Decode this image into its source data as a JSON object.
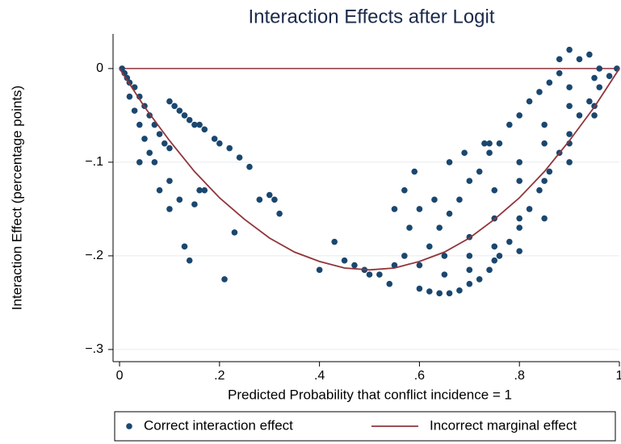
{
  "chart_data": {
    "type": "scatter",
    "title": "Interaction Effects after Logit",
    "x_label": "Predicted Probability that conflict incidence = 1",
    "y_label": "Interaction Effect (percentage points)",
    "xlim": [
      -0.013,
      1.0
    ],
    "ylim": [
      -0.313,
      0.037
    ],
    "xticks": [
      0,
      {
        "value": 0.2,
        "label": ".2"
      },
      {
        "value": 0.4,
        "label": ".4"
      },
      {
        "value": 0.6,
        "label": ".6"
      },
      {
        "value": 0.8,
        "label": ".8"
      },
      1
    ],
    "yticks": [
      0,
      {
        "value": -0.1,
        "label": "−.1"
      },
      {
        "value": -0.2,
        "label": "−.2"
      },
      {
        "value": -0.3,
        "label": "−.3"
      }
    ],
    "grid": true,
    "legend": "bottom",
    "reference_line": {
      "y": 0,
      "color": "#90353b"
    },
    "series": [
      {
        "name": "Correct interaction effect",
        "type": "scatter",
        "color": "#1a476f",
        "x": [
          0.005,
          0.01,
          0.015,
          0.02,
          0.02,
          0.03,
          0.03,
          0.04,
          0.04,
          0.05,
          0.05,
          0.06,
          0.06,
          0.07,
          0.07,
          0.08,
          0.09,
          0.1,
          0.1,
          0.11,
          0.12,
          0.13,
          0.14,
          0.15,
          0.16,
          0.17,
          0.1,
          0.12,
          0.13,
          0.14,
          0.15,
          0.16,
          0.17,
          0.21,
          0.23,
          0.2,
          0.22,
          0.24,
          0.26,
          0.19,
          0.28,
          0.3,
          0.31,
          0.32,
          0.08,
          0.1,
          0.04,
          0.4,
          0.43,
          0.45,
          0.47,
          0.49,
          0.5,
          0.52,
          0.54,
          0.55,
          0.57,
          0.6,
          0.58,
          0.6,
          0.62,
          0.64,
          0.66,
          0.68,
          0.7,
          0.72,
          0.74,
          0.76,
          0.78,
          0.8,
          0.82,
          0.84,
          0.86,
          0.88,
          0.9,
          0.92,
          0.94,
          0.96,
          0.98,
          0.995,
          0.62,
          0.64,
          0.66,
          0.68,
          0.7,
          0.72,
          0.74,
          0.76,
          0.78,
          0.8,
          0.82,
          0.84,
          0.86,
          0.88,
          0.9,
          0.92,
          0.94,
          0.96,
          0.88,
          0.65,
          0.7,
          0.75,
          0.8,
          0.85,
          0.9,
          0.95,
          0.75,
          0.8,
          0.85,
          0.9,
          0.7,
          0.75,
          0.8,
          0.85,
          0.9,
          0.95,
          0.6,
          0.65,
          0.7,
          0.75,
          0.8,
          0.85,
          0.9,
          0.95,
          0.73,
          0.74,
          0.57,
          0.55,
          0.59,
          0.63,
          0.66,
          0.69
        ],
        "values": [
          0.0,
          -0.005,
          -0.01,
          -0.015,
          -0.03,
          -0.02,
          -0.045,
          -0.03,
          -0.06,
          -0.04,
          -0.075,
          -0.05,
          -0.09,
          -0.06,
          -0.1,
          -0.07,
          -0.08,
          -0.035,
          -0.085,
          -0.04,
          -0.045,
          -0.05,
          -0.055,
          -0.06,
          -0.06,
          -0.065,
          -0.15,
          -0.14,
          -0.19,
          -0.205,
          -0.145,
          -0.13,
          -0.13,
          -0.225,
          -0.175,
          -0.08,
          -0.085,
          -0.095,
          -0.105,
          -0.075,
          -0.14,
          -0.135,
          -0.14,
          -0.155,
          -0.13,
          -0.12,
          -0.1,
          -0.215,
          -0.185,
          -0.205,
          -0.21,
          -0.215,
          -0.22,
          -0.22,
          -0.23,
          -0.21,
          -0.2,
          -0.15,
          -0.17,
          -0.235,
          -0.238,
          -0.24,
          -0.24,
          -0.237,
          -0.23,
          -0.225,
          -0.215,
          -0.2,
          -0.185,
          -0.17,
          -0.15,
          -0.13,
          -0.11,
          -0.09,
          -0.07,
          -0.05,
          -0.035,
          -0.02,
          -0.008,
          0.0,
          -0.19,
          -0.17,
          -0.155,
          -0.14,
          -0.12,
          -0.11,
          -0.09,
          -0.08,
          -0.06,
          -0.05,
          -0.035,
          -0.025,
          -0.015,
          -0.005,
          0.02,
          0.01,
          0.015,
          0.0,
          0.01,
          -0.2,
          -0.18,
          -0.16,
          -0.12,
          -0.08,
          -0.04,
          -0.01,
          -0.13,
          -0.1,
          -0.06,
          -0.02,
          -0.2,
          -0.19,
          -0.16,
          -0.12,
          -0.08,
          -0.04,
          -0.21,
          -0.22,
          -0.215,
          -0.205,
          -0.195,
          -0.16,
          -0.1,
          -0.05,
          -0.08,
          -0.08,
          -0.13,
          -0.15,
          -0.11,
          -0.14,
          -0.1,
          -0.09
        ]
      },
      {
        "name": "Incorrect marginal effect",
        "type": "line",
        "color": "#90353b",
        "x": [
          0,
          0.05,
          0.1,
          0.15,
          0.2,
          0.25,
          0.3,
          0.35,
          0.4,
          0.45,
          0.5,
          0.55,
          0.6,
          0.65,
          0.7,
          0.75,
          0.8,
          0.85,
          0.9,
          0.95,
          1
        ],
        "values": [
          0,
          -0.041,
          -0.077,
          -0.11,
          -0.138,
          -0.161,
          -0.181,
          -0.196,
          -0.206,
          -0.213,
          -0.215,
          -0.213,
          -0.206,
          -0.196,
          -0.181,
          -0.161,
          -0.138,
          -0.11,
          -0.077,
          -0.041,
          0
        ]
      }
    ]
  }
}
